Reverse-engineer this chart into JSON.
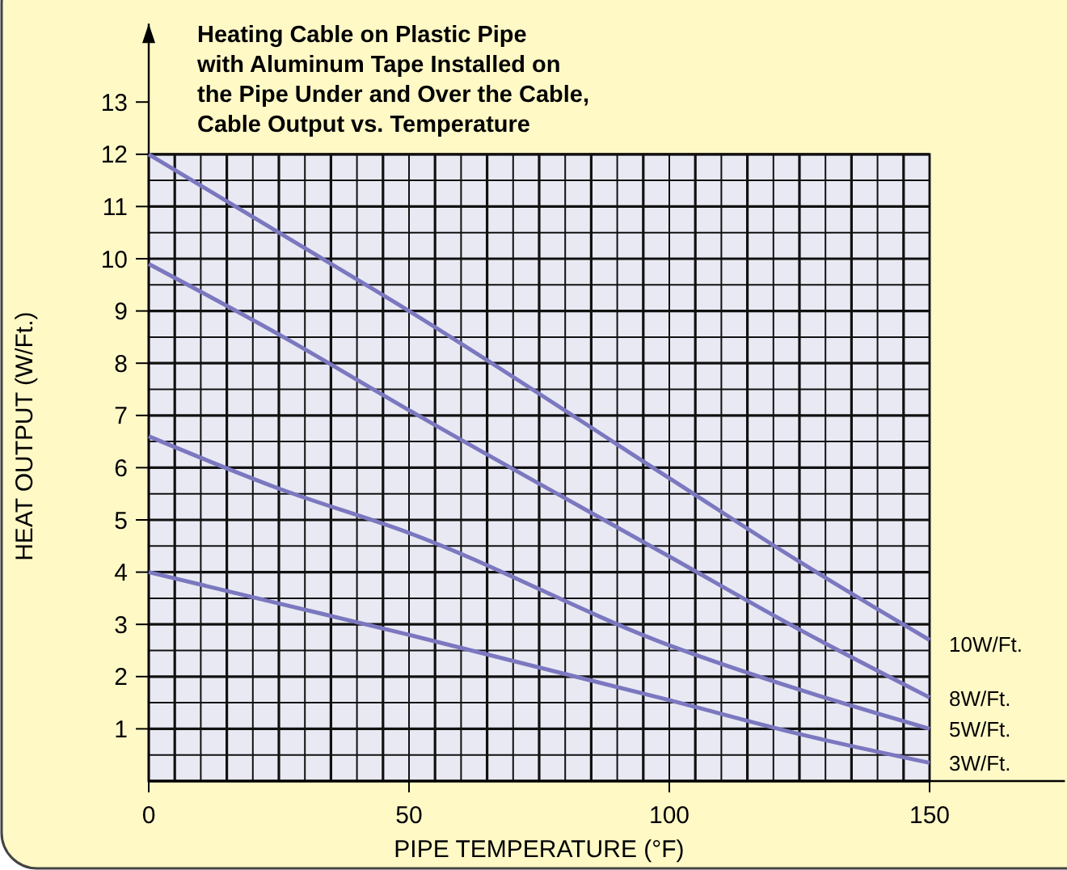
{
  "chart_data": {
    "type": "line",
    "title": "Heating Cable on Plastic Pipe\nwith Aluminum Tape Installed on\nthe Pipe Under and Over the Cable,\nCable Output vs. Temperature",
    "xlabel": "PIPE TEMPERATURE (°F)",
    "ylabel": "HEAT OUTPUT (W/Ft.)",
    "x": [
      0,
      25,
      50,
      100,
      125,
      150
    ],
    "series": [
      {
        "name": "10W/Ft.",
        "color": "#7b78c0",
        "values": [
          12,
          10.5,
          9,
          5.8,
          4.2,
          2.7
        ]
      },
      {
        "name": "8W/Ft.",
        "color": "#7b78c0",
        "values": [
          9.9,
          8.55,
          7.1,
          4.3,
          2.9,
          1.6
        ]
      },
      {
        "name": "5W/Ft.",
        "color": "#7b78c0",
        "values": [
          6.6,
          5.6,
          4.75,
          2.6,
          1.75,
          1
        ]
      },
      {
        "name": "3W/Ft.",
        "color": "#7b78c0",
        "values": [
          4,
          3.4,
          2.8,
          1.55,
          0.9,
          0.35
        ]
      }
    ],
    "bands": [
      {
        "axis": "y",
        "from": 0,
        "to": 12,
        "color": "#e9e9f3"
      }
    ],
    "xlim": [
      0,
      176
    ],
    "ylim": [
      0,
      14.5
    ],
    "xticks": [
      0,
      50,
      100,
      150
    ],
    "yticks": [
      1,
      2,
      3,
      4,
      5,
      6,
      7,
      8,
      9,
      10,
      11,
      12,
      13
    ],
    "grid": true,
    "line_style": "solid"
  }
}
